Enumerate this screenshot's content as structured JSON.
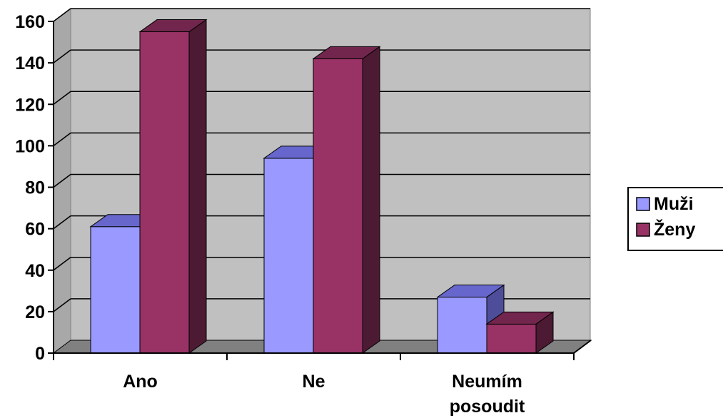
{
  "chart_data": {
    "type": "bar",
    "title": "",
    "xlabel": "",
    "ylabel": "",
    "categories": [
      "Ano",
      "Ne",
      "Neumím posoudit"
    ],
    "category_lines": [
      [
        "Ano"
      ],
      [
        "Ne"
      ],
      [
        "Neumím",
        "posoudit"
      ]
    ],
    "series": [
      {
        "name": "Muži",
        "values": [
          61,
          94,
          27
        ],
        "color": "#9999ff",
        "top_color": "#6666cc",
        "side_color": "#4d4d99"
      },
      {
        "name": "Ženy",
        "values": [
          155,
          142,
          14
        ],
        "color": "#993366",
        "top_color": "#73264d",
        "side_color": "#4d1a33"
      }
    ],
    "ylim": [
      0,
      160
    ],
    "yticks": [
      0,
      20,
      40,
      60,
      80,
      100,
      120,
      140,
      160
    ],
    "grid": true,
    "legend_position": "right",
    "plot_background": "#c0c0c0",
    "floor_color": "#808080"
  }
}
